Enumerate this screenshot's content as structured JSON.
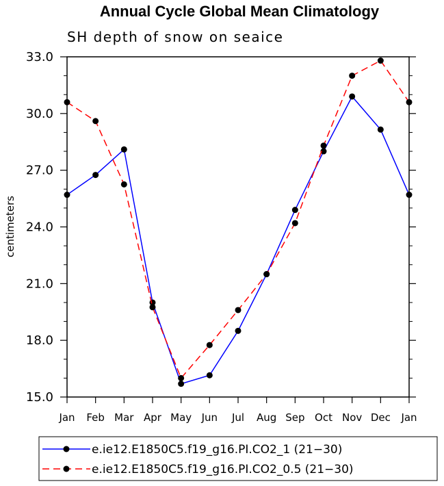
{
  "chart_data": {
    "type": "line",
    "title": "Annual Cycle Global Mean Climatology",
    "subtitle": "SH depth of snow on seaice",
    "ylabel": "centimeters",
    "xlabel": "",
    "categories": [
      "Jan",
      "Feb",
      "Mar",
      "Apr",
      "May",
      "Jun",
      "Jul",
      "Aug",
      "Sep",
      "Oct",
      "Nov",
      "Dec",
      "Jan"
    ],
    "ylim": [
      15.0,
      33.0
    ],
    "yticks": [
      "15.0",
      "18.0",
      "21.0",
      "24.0",
      "27.0",
      "30.0",
      "33.0"
    ],
    "grid": false,
    "legend_position": "bottom",
    "series": [
      {
        "name": "e.ie12.E1850C5.f19_g16.PI.CO2_1 (21−30)",
        "color": "#0000ff",
        "dash": "solid",
        "values": [
          25.7,
          26.75,
          28.1,
          20.0,
          15.7,
          16.15,
          18.5,
          21.5,
          24.9,
          28.0,
          30.9,
          29.15,
          25.7
        ]
      },
      {
        "name": "e.ie12.E1850C5.f19_g16.PI.CO2_0.5 (21−30)",
        "color": "#ff0000",
        "dash": "dashed",
        "values": [
          30.6,
          29.6,
          26.25,
          19.75,
          16.0,
          17.75,
          19.6,
          21.5,
          24.2,
          28.3,
          32.0,
          32.8,
          30.6
        ]
      }
    ]
  }
}
